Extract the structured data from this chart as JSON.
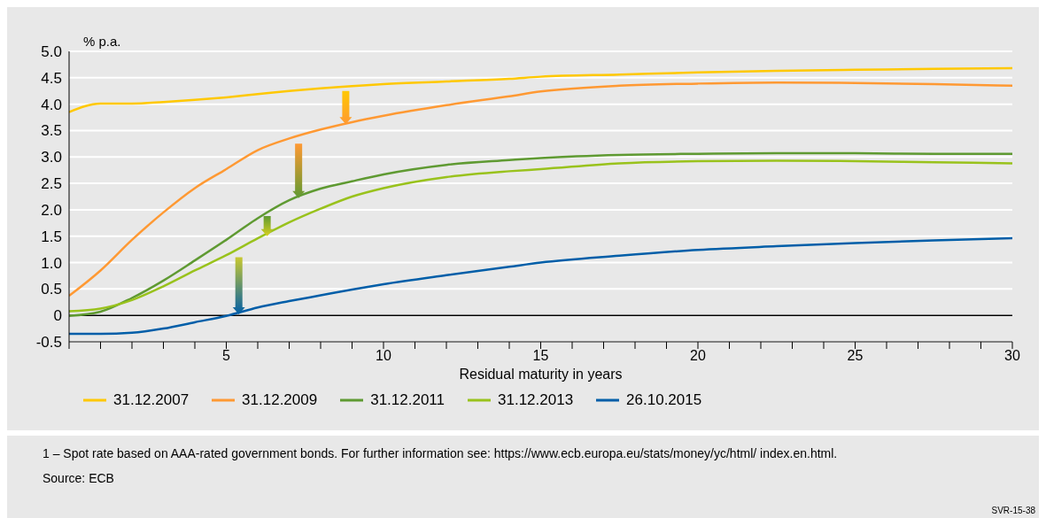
{
  "chart_data": {
    "type": "line",
    "ylabel": "% p.a.",
    "xlabel": "Residual maturity in years",
    "x": [
      0,
      1,
      2,
      3,
      4,
      5,
      6,
      7,
      8,
      9,
      10,
      12,
      14,
      15,
      17.5,
      20,
      22.5,
      25,
      27.5,
      30
    ],
    "series": [
      {
        "name": "31.12.2007",
        "color": "#ffc800",
        "values": [
          3.85,
          4.01,
          4.01,
          4.04,
          4.08,
          4.13,
          4.19,
          4.25,
          4.3,
          4.34,
          4.38,
          4.43,
          4.48,
          4.52,
          4.56,
          4.6,
          4.63,
          4.65,
          4.67,
          4.68
        ]
      },
      {
        "name": "31.12.2009",
        "color": "#ff9933",
        "values": [
          0.37,
          0.85,
          1.43,
          1.95,
          2.41,
          2.77,
          3.13,
          3.35,
          3.52,
          3.66,
          3.78,
          3.98,
          4.15,
          4.24,
          4.35,
          4.39,
          4.41,
          4.4,
          4.38,
          4.35
        ]
      },
      {
        "name": "31.12.2011",
        "color": "#5f9a32",
        "values": [
          -0.01,
          0.07,
          0.33,
          0.66,
          1.04,
          1.43,
          1.84,
          2.18,
          2.4,
          2.54,
          2.67,
          2.85,
          2.94,
          2.98,
          3.04,
          3.06,
          3.07,
          3.07,
          3.06,
          3.06
        ]
      },
      {
        "name": "31.12.2013",
        "color": "#99c21c",
        "values": [
          0.08,
          0.13,
          0.29,
          0.55,
          0.85,
          1.14,
          1.46,
          1.76,
          2.02,
          2.25,
          2.41,
          2.62,
          2.73,
          2.77,
          2.88,
          2.92,
          2.93,
          2.92,
          2.9,
          2.88
        ]
      },
      {
        "name": "26.10.2015",
        "color": "#005ea8",
        "values": [
          -0.35,
          -0.35,
          -0.33,
          -0.25,
          -0.13,
          -0.01,
          0.15,
          0.27,
          0.38,
          0.49,
          0.59,
          0.76,
          0.92,
          1.0,
          1.13,
          1.24,
          1.31,
          1.37,
          1.42,
          1.46
        ]
      }
    ],
    "xlim": [
      0,
      30
    ],
    "xticks": [
      {
        "value": 0,
        "label": null
      },
      {
        "value": 1,
        "label": null
      },
      {
        "value": 2,
        "label": null
      },
      {
        "value": 3,
        "label": null
      },
      {
        "value": 4,
        "label": null
      },
      5,
      {
        "value": 6,
        "label": null
      },
      {
        "value": 7,
        "label": null
      },
      {
        "value": 8,
        "label": null
      },
      {
        "value": 9,
        "label": null
      },
      10,
      {
        "value": 11,
        "label": null
      },
      {
        "value": 12,
        "label": null
      },
      {
        "value": 13,
        "label": null
      },
      {
        "value": 14,
        "label": null
      },
      15,
      {
        "value": 16,
        "label": null
      },
      {
        "value": 17,
        "label": null
      },
      {
        "value": 18,
        "label": null
      },
      {
        "value": 19,
        "label": null
      },
      20,
      {
        "value": 21,
        "label": null
      },
      {
        "value": 22,
        "label": null
      },
      {
        "value": 23,
        "label": null
      },
      {
        "value": 24,
        "label": null
      },
      25,
      {
        "value": 26,
        "label": null
      },
      {
        "value": 27,
        "label": null
      },
      {
        "value": 28,
        "label": null
      },
      {
        "value": 29,
        "label": null
      },
      30
    ],
    "ylim": [
      -0.5,
      5
    ],
    "yticks": [
      -0.5,
      0,
      0.5,
      {
        "value": 1,
        "label": "1.0"
      },
      1.5,
      {
        "value": 2,
        "label": "2.0"
      },
      2.5,
      {
        "value": 3,
        "label": "3.0"
      },
      3.5,
      {
        "value": 4,
        "label": "4.0"
      },
      4.5,
      {
        "value": 5,
        "label": "5.0"
      }
    ],
    "grid": "y",
    "legend": "bottom",
    "line_style": "solid",
    "ref_lines": [
      {
        "axis": "y",
        "value": 0,
        "label": null,
        "color": "#000000"
      }
    ],
    "annotations": [
      "1 – Spot rate based on AAA-rated government bonds. For further information see: https://www.ecb.europa.eu/stats/money/yc/html/ index.en.html.",
      "Source: ECB",
      "SVR-15-38"
    ]
  }
}
